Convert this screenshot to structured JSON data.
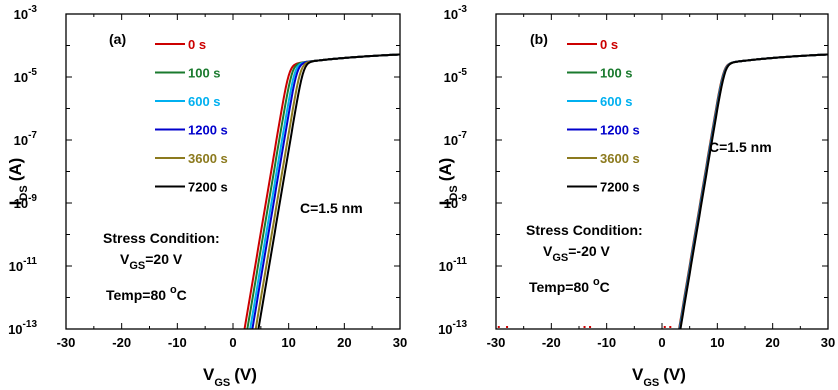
{
  "chart_data": [
    {
      "type": "line",
      "panel_label": "(a)",
      "xlabel": {
        "main": "V",
        "sub": "GS",
        "unit": "(V)"
      },
      "ylabel": {
        "main": "I",
        "sub": "DS",
        "unit": "(A)"
      },
      "xlim": [
        -30,
        30
      ],
      "ylim_log10": [
        -13,
        -3
      ],
      "yscale": "log",
      "x_ticks": [
        "-30",
        "-20",
        "-10",
        "0",
        "10",
        "20",
        "30"
      ],
      "y_ticks": [
        {
          "base": "10",
          "exp": "-13"
        },
        {
          "base": "10",
          "exp": "-11"
        },
        {
          "base": "10",
          "exp": "-9"
        },
        {
          "base": "10",
          "exp": "-7"
        },
        {
          "base": "10",
          "exp": "-5"
        },
        {
          "base": "10",
          "exp": "-3"
        }
      ],
      "annotations": {
        "thickness": "C=1.5 nm",
        "stress_title": "Stress Condition:",
        "stress_v_main": "V",
        "stress_v_sub": "GS",
        "stress_v_value": "=20 V",
        "temp_main": "Temp=80 ",
        "temp_sup": "o",
        "temp_unit": "C"
      },
      "series": [
        {
          "name": "0 s",
          "color": "#cc0000",
          "vth": 1.6
        },
        {
          "name": "100 s",
          "color": "#1a7a2e",
          "vth": 2.1
        },
        {
          "name": "600 s",
          "color": "#00b0f0",
          "vth": 2.6
        },
        {
          "name": "1200 s",
          "color": "#0000cc",
          "vth": 3.0
        },
        {
          "name": "3600 s",
          "color": "#8c7a1e",
          "vth": 3.6
        },
        {
          "name": "7200 s",
          "color": "#000000",
          "vth": 4.1
        }
      ]
    },
    {
      "type": "line",
      "panel_label": "(b)",
      "xlabel": {
        "main": "V",
        "sub": "GS",
        "unit": "(V)"
      },
      "ylabel": {
        "main": "I",
        "sub": "DS",
        "unit": "(A)"
      },
      "xlim": [
        -30,
        30
      ],
      "ylim_log10": [
        -13,
        -3
      ],
      "yscale": "log",
      "x_ticks": [
        "-30",
        "-20",
        "-10",
        "0",
        "10",
        "20",
        "30"
      ],
      "y_ticks": [
        {
          "base": "10",
          "exp": "-13"
        },
        {
          "base": "10",
          "exp": "-11"
        },
        {
          "base": "10",
          "exp": "-9"
        },
        {
          "base": "10",
          "exp": "-7"
        },
        {
          "base": "10",
          "exp": "-5"
        },
        {
          "base": "10",
          "exp": "-3"
        }
      ],
      "annotations": {
        "thickness": "C=1.5 nm",
        "stress_title": "Stress Condition:",
        "stress_v_main": "V",
        "stress_v_sub": "GS",
        "stress_v_value": "=-20 V",
        "temp_main": "Temp=80 ",
        "temp_sup": "o",
        "temp_unit": "C"
      },
      "series": [
        {
          "name": "0 s",
          "color": "#cc0000",
          "vth": 2.6
        },
        {
          "name": "100 s",
          "color": "#1a7a2e",
          "vth": 2.65
        },
        {
          "name": "600 s",
          "color": "#00b0f0",
          "vth": 2.7
        },
        {
          "name": "1200 s",
          "color": "#0000cc",
          "vth": 2.75
        },
        {
          "name": "3600 s",
          "color": "#8c7a1e",
          "vth": 2.8
        },
        {
          "name": "7200 s",
          "color": "#000000",
          "vth": 2.85
        }
      ]
    }
  ]
}
